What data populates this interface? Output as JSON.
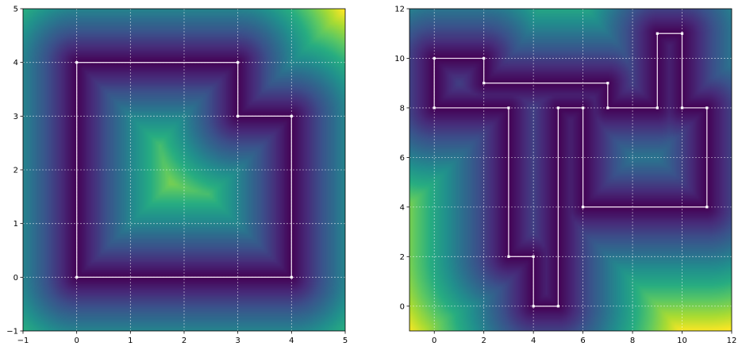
{
  "chart_data": [
    {
      "type": "heatmap",
      "overlay": "line",
      "title": "",
      "xlabel": "",
      "ylabel": "",
      "xlim": [
        -1,
        5
      ],
      "ylim": [
        -1,
        5
      ],
      "xticks": [
        -1,
        0,
        1,
        2,
        3,
        4,
        5
      ],
      "yticks": [
        -1,
        0,
        1,
        2,
        3,
        4,
        5
      ],
      "grid": true,
      "colormap": "viridis",
      "polygon": [
        [
          0,
          0
        ],
        [
          0,
          4
        ],
        [
          3,
          4
        ],
        [
          3,
          3
        ],
        [
          4,
          3
        ],
        [
          4,
          0
        ]
      ],
      "line_color": "#e8d8ec",
      "grid_color": "#ffffff"
    },
    {
      "type": "heatmap",
      "overlay": "line",
      "title": "",
      "xlabel": "",
      "ylabel": "",
      "xlim": [
        -1,
        12
      ],
      "ylim": [
        -1,
        12
      ],
      "xticks": [
        0,
        2,
        4,
        6,
        8,
        10,
        12
      ],
      "yticks": [
        0,
        2,
        4,
        6,
        8,
        10,
        12
      ],
      "grid": true,
      "colormap": "viridis",
      "polygon": [
        [
          0,
          10
        ],
        [
          2,
          10
        ],
        [
          2,
          9
        ],
        [
          7,
          9
        ],
        [
          7,
          8
        ],
        [
          9,
          8
        ],
        [
          9,
          11
        ],
        [
          10,
          11
        ],
        [
          10,
          8
        ],
        [
          11,
          8
        ],
        [
          11,
          4
        ],
        [
          6,
          4
        ],
        [
          6,
          8
        ],
        [
          5,
          8
        ],
        [
          5,
          0
        ],
        [
          4,
          0
        ],
        [
          4,
          2
        ],
        [
          3,
          2
        ],
        [
          3,
          8
        ],
        [
          0,
          8
        ]
      ],
      "line_color": "#e8d8ec",
      "grid_color": "#ffffff"
    }
  ]
}
